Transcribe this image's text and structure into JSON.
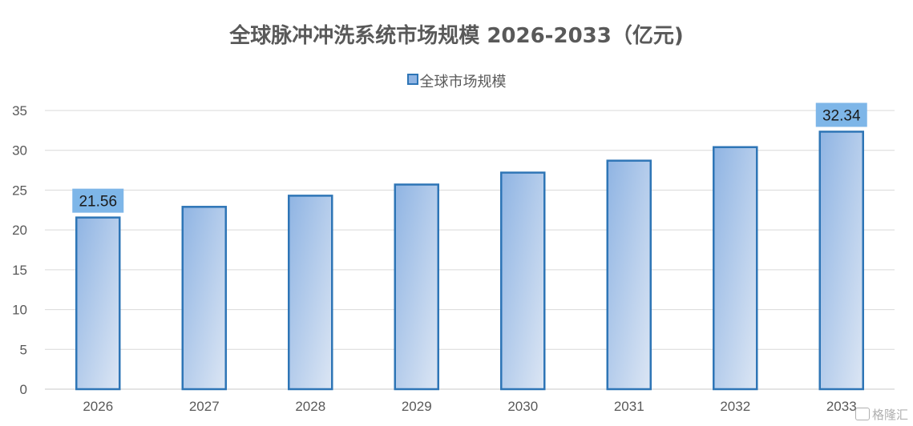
{
  "chart_data": {
    "type": "bar",
    "title": "全球脉冲冲洗系统市场规模 2026-2033（亿元)",
    "categories": [
      "2026",
      "2027",
      "2028",
      "2029",
      "2030",
      "2031",
      "2032",
      "2033"
    ],
    "series": [
      {
        "name": "全球市场规模",
        "values": [
          21.56,
          22.9,
          24.3,
          25.7,
          27.2,
          28.7,
          30.4,
          32.34
        ],
        "color": "#2E75B6"
      }
    ],
    "data_labels": [
      {
        "category": "2026",
        "text": "21.56"
      },
      {
        "category": "2033",
        "text": "32.34"
      }
    ],
    "ylim": [
      0,
      35
    ],
    "yticks": [
      0,
      5,
      10,
      15,
      20,
      25,
      30,
      35
    ],
    "xlabel": "",
    "ylabel": "",
    "grid": true,
    "legend_position": "top-center",
    "label_background": "#7EB6E8",
    "gradient": [
      "#8FB4E3",
      "#DCE6F4"
    ]
  },
  "watermark": {
    "text": "格隆汇",
    "icon": "watermark-logo-icon"
  }
}
